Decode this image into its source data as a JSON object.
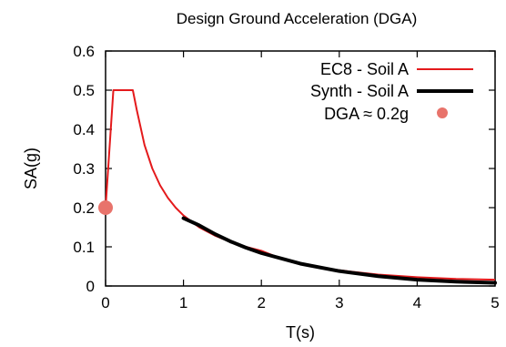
{
  "chart_data": {
    "type": "line",
    "title": "Design Ground Acceleration (DGA)",
    "xlabel": "T(s)",
    "ylabel": "SA(g)",
    "xlim": [
      0,
      5
    ],
    "ylim": [
      0,
      0.6
    ],
    "xticks": [
      0,
      1,
      2,
      3,
      4,
      5
    ],
    "yticks": [
      0,
      0.1,
      0.2,
      0.3,
      0.4,
      0.5,
      0.6
    ],
    "ytick_labels": [
      "0",
      "0.1",
      "0.2",
      "0.3",
      "0.4",
      "0.5",
      "0.6"
    ],
    "grid": false,
    "legend_position": "top-right",
    "colors": {
      "ec8": "#e41a1c",
      "synth": "#000000",
      "dga": "#e8736b"
    },
    "series": [
      {
        "name": "EC8 - Soil A",
        "x": [
          0,
          0.05,
          0.1,
          0.15,
          0.2,
          0.25,
          0.3,
          0.35,
          0.4,
          0.5,
          0.6,
          0.7,
          0.8,
          0.9,
          1.0,
          1.2,
          1.4,
          1.6,
          1.8,
          2.0,
          2.2,
          2.4,
          2.6,
          2.8,
          3.0,
          3.5,
          4.0,
          4.5,
          5.0
        ],
        "y": [
          0.2,
          0.35,
          0.5,
          0.5,
          0.5,
          0.5,
          0.5,
          0.5,
          0.45,
          0.36,
          0.3,
          0.257,
          0.225,
          0.2,
          0.18,
          0.15,
          0.129,
          0.113,
          0.1,
          0.09,
          0.074,
          0.0625,
          0.053,
          0.046,
          0.04,
          0.029,
          0.0225,
          0.018,
          0.016
        ]
      },
      {
        "name": "Synth - Soil A",
        "x": [
          1.0,
          1.2,
          1.4,
          1.6,
          1.8,
          2.0,
          2.5,
          3.0,
          3.5,
          4.0,
          4.5,
          5.0
        ],
        "y": [
          0.173,
          0.155,
          0.133,
          0.114,
          0.098,
          0.084,
          0.057,
          0.038,
          0.025,
          0.016,
          0.011,
          0.008
        ]
      },
      {
        "name": "DGA ≈ 0.2g",
        "type": "scatter",
        "x": [
          0
        ],
        "y": [
          0.2
        ]
      }
    ]
  }
}
